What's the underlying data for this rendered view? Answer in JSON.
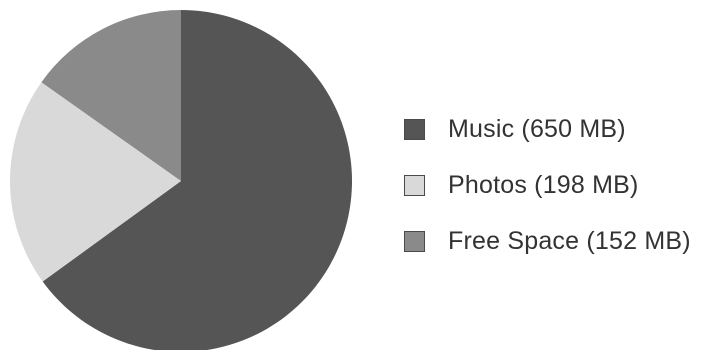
{
  "chart_data": {
    "type": "pie",
    "slices": [
      {
        "label": "Music (650 MB)",
        "value": 650,
        "color": "#555555"
      },
      {
        "label": "Photos (198 MB)",
        "value": 198,
        "color": "#d9d9d9"
      },
      {
        "label": "Free Space (152 MB)",
        "value": 152,
        "color": "#8a8a8a"
      }
    ],
    "legend_position": "right"
  }
}
